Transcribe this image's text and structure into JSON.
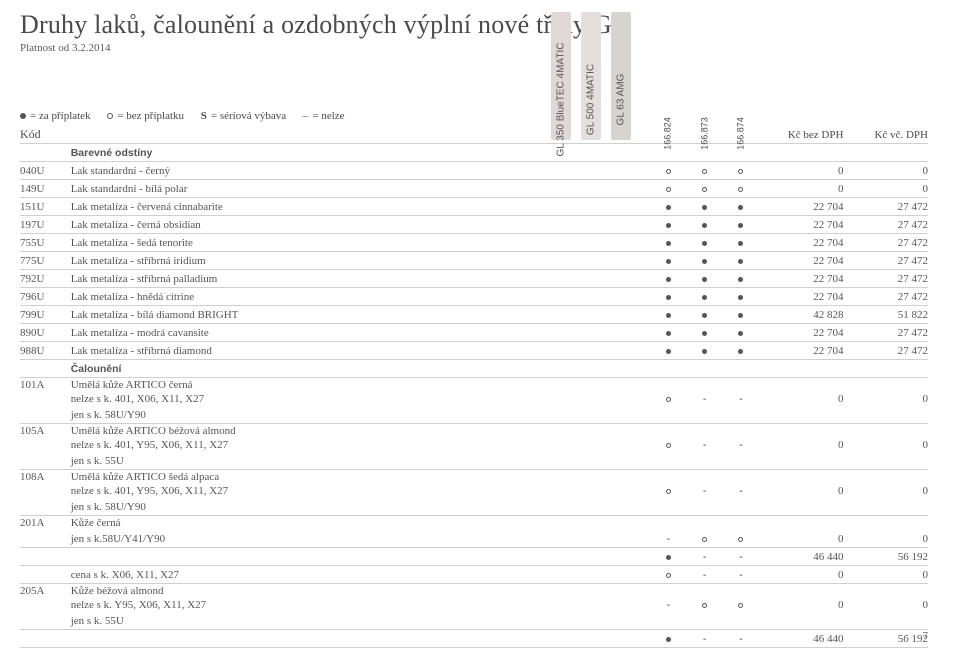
{
  "header": {
    "title": "Druhy laků, čalounění a ozdobných výplní nové třídy GL",
    "subtitle": "Platnost od 3.2.2014"
  },
  "legend": {
    "paid": "= za příplatek",
    "free": "= bez příplatku",
    "serial_prefix": "S",
    "serial": "= sériová výbava",
    "notavail_prefix": "–",
    "notavail": "= nelze"
  },
  "columns": {
    "code": "Kód",
    "models": [
      {
        "num": "166.824",
        "name": "GL 350 BlueTEC 4MATIC",
        "box_color": "#e1d8d6"
      },
      {
        "num": "166.873",
        "name": "GL 500 4MATIC",
        "box_color": "#e6dedd"
      },
      {
        "num": "166.874",
        "name": "GL 63 AMG",
        "box_color": "#d9d3cd"
      }
    ],
    "price1": "Kč bez DPH",
    "price2": "Kč vč. DPH"
  },
  "sections": [
    {
      "label": "Barevné odstíny"
    },
    {
      "label": "Čalounění"
    }
  ],
  "rows": [
    {
      "code": "040U",
      "desc": "Lak standardní - černý",
      "m": [
        "o",
        "o",
        "o"
      ],
      "p1": "0",
      "p2": "0",
      "sec": 0
    },
    {
      "code": "149U",
      "desc": "Lak standardní - bílá polar",
      "m": [
        "o",
        "o",
        "o"
      ],
      "p1": "0",
      "p2": "0",
      "sec": 0
    },
    {
      "code": "151U",
      "desc": "Lak metalíza - červená cinnabarite",
      "m": [
        "f",
        "f",
        "f"
      ],
      "p1": "22 704",
      "p2": "27 472",
      "sec": 0
    },
    {
      "code": "197U",
      "desc": "Lak metalíza - černá obsidian",
      "m": [
        "f",
        "f",
        "f"
      ],
      "p1": "22 704",
      "p2": "27 472",
      "sec": 0
    },
    {
      "code": "755U",
      "desc": "Lak metalíza - šedá tenorite",
      "m": [
        "f",
        "f",
        "f"
      ],
      "p1": "22 704",
      "p2": "27 472",
      "sec": 0
    },
    {
      "code": "775U",
      "desc": "Lak metalíza - stříbrná iridium",
      "m": [
        "f",
        "f",
        "f"
      ],
      "p1": "22 704",
      "p2": "27 472",
      "sec": 0
    },
    {
      "code": "792U",
      "desc": "Lak metalíza - stříbrná palladium",
      "m": [
        "f",
        "f",
        "f"
      ],
      "p1": "22 704",
      "p2": "27 472",
      "sec": 0
    },
    {
      "code": "796U",
      "desc": "Lak metalíza - hnědá citrine",
      "m": [
        "f",
        "f",
        "f"
      ],
      "p1": "22 704",
      "p2": "27 472",
      "sec": 0
    },
    {
      "code": "799U",
      "desc": "Lak metalíza - bílá diamond BRIGHT",
      "m": [
        "f",
        "f",
        "f"
      ],
      "p1": "42 828",
      "p2": "51 822",
      "sec": 0
    },
    {
      "code": "890U",
      "desc": "Lak metalíza - modrá cavansite",
      "m": [
        "f",
        "f",
        "f"
      ],
      "p1": "22 704",
      "p2": "27 472",
      "sec": 0
    },
    {
      "code": "988U",
      "desc": "Lak metalíza - stříbrná diamond",
      "m": [
        "f",
        "f",
        "f"
      ],
      "p1": "22 704",
      "p2": "27 472",
      "sec": 0
    }
  ],
  "multi": {
    "101A": {
      "l1": "Umělá kůže ARTICO černá",
      "l2": "nelze s k. 401, X06, X11, X27",
      "l3": "jen s k. 58U/Y90",
      "m": [
        "o",
        "-",
        "-"
      ],
      "p1": "0",
      "p2": "0"
    },
    "105A": {
      "l1": "Umělá kůže ARTICO béžová almond",
      "l2": "nelze s k. 401, Y95, X06, X11, X27",
      "l3": "jen s k. 55U",
      "m": [
        "o",
        "-",
        "-"
      ],
      "p1": "0",
      "p2": "0"
    },
    "108A": {
      "l1": "Umělá kůže ARTICO šedá alpaca",
      "l2": "nelze s k. 401, Y95, X06, X11, X27",
      "l3": "jen s k. 58U/Y90",
      "m": [
        "o",
        "-",
        "-"
      ],
      "p1": "0",
      "p2": "0"
    },
    "201A": {
      "l1": "Kůže černá",
      "l2": "jen s k.58U/Y41/Y90",
      "m": [
        "-",
        "o",
        "o"
      ],
      "p1": "0",
      "p2": "0",
      "extra": {
        "desc": "",
        "m": [
          "f",
          "-",
          "-"
        ],
        "p1": "46 440",
        "p2": "56 192"
      },
      "cena": {
        "desc": "cena s k. X06, X11, X27",
        "m": [
          "o",
          "-",
          "-"
        ],
        "p1": "0",
        "p2": "0"
      }
    },
    "205A": {
      "l1": "Kůže béžová almond",
      "l2": "nelze s k. Y95, X06, X11, X27",
      "l3": "jen s k. 55U",
      "m": [
        "-",
        "o",
        "o"
      ],
      "p1": "0",
      "p2": "0",
      "extra": {
        "desc": "",
        "m": [
          "f",
          "-",
          "-"
        ],
        "p1": "46 440",
        "p2": "56 192"
      }
    }
  },
  "pagenum": "7"
}
